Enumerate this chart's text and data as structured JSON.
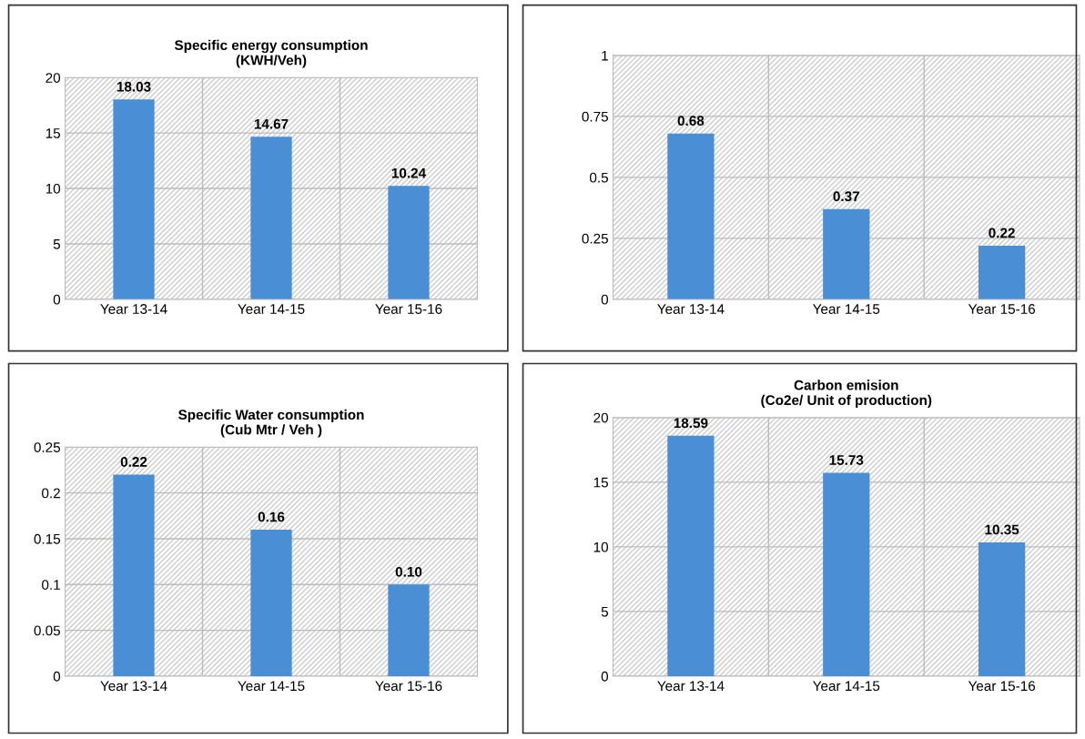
{
  "chart_data": [
    {
      "type": "bar",
      "title": "Specific energy consumption\n(KWH/Veh)",
      "categories": [
        "Year 13-14",
        "Year 14-15",
        "Year 15-16"
      ],
      "values": [
        18.03,
        14.67,
        10.24
      ],
      "value_labels": [
        "18.03",
        "14.67",
        "10.24"
      ],
      "color": "#4a8fd6",
      "ylim": [
        0,
        20
      ],
      "yticks": [
        0,
        5,
        10,
        15,
        20
      ],
      "grid": true
    },
    {
      "type": "bar",
      "categories": [
        "Year 13-14",
        "Year 14-15",
        "Year 15-16"
      ],
      "values": [
        0.68,
        0.37,
        0.22
      ],
      "value_labels": [
        "0.68",
        "0.37",
        "0.22"
      ],
      "color": "#4a8fd6",
      "ylim": [
        0,
        1
      ],
      "yticks": [
        0,
        0.25,
        0.5,
        0.75,
        1
      ],
      "grid": true
    },
    {
      "type": "bar",
      "title": "Specific Water consumption\n(Cub Mtr / Veh )",
      "categories": [
        "Year 13-14",
        "Year 14-15",
        "Year 15-16"
      ],
      "values": [
        0.22,
        0.16,
        0.1
      ],
      "value_labels": [
        "0.22",
        "0.16",
        "0.10"
      ],
      "color": "#4a8fd6",
      "ylim": [
        0,
        0.25
      ],
      "yticks": [
        0,
        0.05,
        0.1,
        0.15,
        0.2,
        0.25
      ],
      "grid": true
    },
    {
      "type": "bar",
      "title": "Carbon emision\n(Co2e/ Unit of production)",
      "categories": [
        "Year 13-14",
        "Year 14-15",
        "Year 15-16"
      ],
      "values": [
        18.59,
        15.73,
        10.35
      ],
      "value_labels": [
        "18.59",
        "15.73",
        "10.35"
      ],
      "color": "#4a8fd6",
      "ylim": [
        0,
        20
      ],
      "yticks": [
        0,
        5,
        10,
        15,
        20
      ],
      "grid": true
    }
  ]
}
